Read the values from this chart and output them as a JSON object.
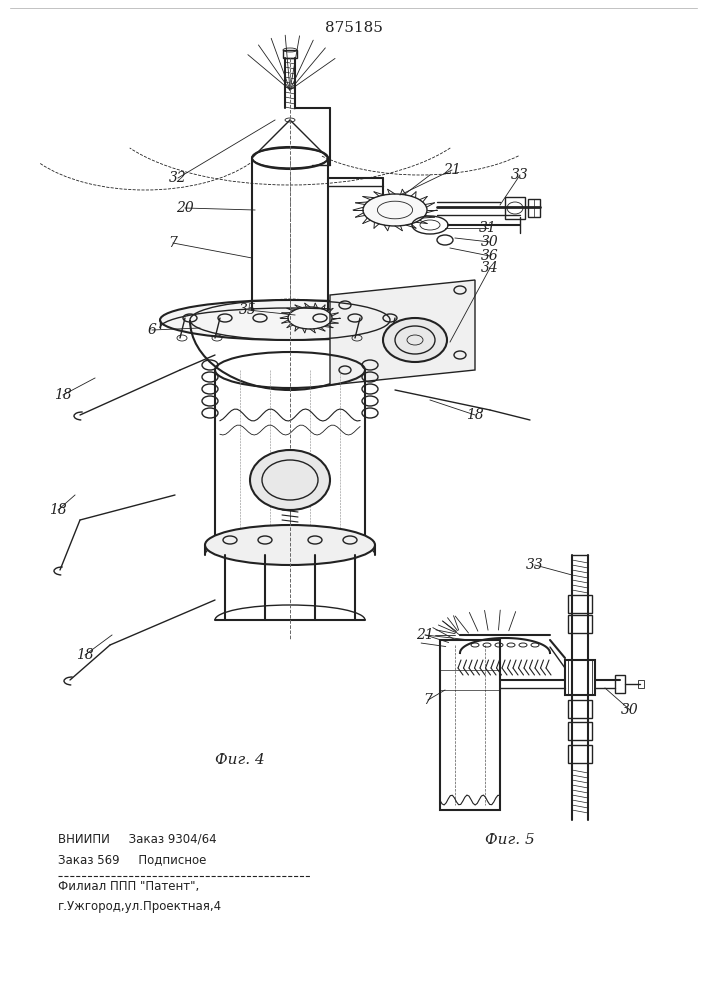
{
  "title_number": "875185",
  "fig4_label": "Фиг. 4",
  "fig5_label": "Фиг. 5",
  "bottom_text_line1": "ВНИИПИ     Заказ 9304/64",
  "bottom_text_line2": "Заказ 569     Подписное",
  "bottom_text_line3": "Филиал ППП \"Патент\",",
  "bottom_text_line4": "г.Ужгород,ул.Проектная,4",
  "bg_color": "#ffffff",
  "line_color": "#222222"
}
